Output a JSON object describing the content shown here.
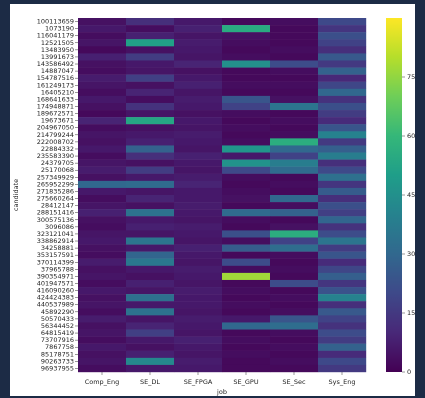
{
  "chart_data": {
    "type": "heatmap",
    "x_label": "job",
    "y_label": "candidate",
    "columns": [
      "Comp_Eng",
      "SE_DL",
      "SE_FPGA",
      "SE_GPU",
      "SE_Sec",
      "Sys_Eng"
    ],
    "rows": [
      "100113659",
      "1073190",
      "116041179",
      "12521505",
      "13483950",
      "13991673",
      "143586492",
      "14887047",
      "154787516",
      "161249173",
      "16405210",
      "168641633",
      "174948871",
      "189672571",
      "19673671",
      "204967050",
      "214799244",
      "222008702",
      "22884332",
      "235583390",
      "24379705",
      "25170068",
      "257349929",
      "265952299",
      "271835286",
      "275660264",
      "28412147",
      "288151416",
      "300575136",
      "3096086",
      "323121041",
      "338862914",
      "34258881",
      "353157591",
      "370114399",
      "37965788",
      "390354971",
      "401947571",
      "416090260",
      "424424383",
      "440537989",
      "45892290",
      "50570433",
      "56344452",
      "64815419",
      "73707916",
      "7867758",
      "85178751",
      "90263733",
      "96937955"
    ],
    "values": [
      [
        4,
        12,
        6,
        2,
        3,
        20
      ],
      [
        6,
        3,
        8,
        55,
        2,
        14
      ],
      [
        3,
        8,
        5,
        4,
        2,
        22
      ],
      [
        5,
        51,
        7,
        3,
        2,
        18
      ],
      [
        2,
        4,
        6,
        2,
        3,
        12
      ],
      [
        8,
        16,
        5,
        3,
        2,
        25
      ],
      [
        4,
        6,
        9,
        45,
        21,
        15
      ],
      [
        3,
        5,
        4,
        2,
        3,
        28
      ],
      [
        7,
        17,
        6,
        2,
        2,
        10
      ],
      [
        5,
        4,
        8,
        3,
        3,
        19
      ],
      [
        3,
        9,
        5,
        2,
        2,
        30
      ],
      [
        6,
        3,
        7,
        24,
        4,
        13
      ],
      [
        4,
        13,
        6,
        18,
        35,
        22
      ],
      [
        2,
        5,
        4,
        3,
        2,
        16
      ],
      [
        9,
        53,
        6,
        2,
        3,
        11
      ],
      [
        3,
        4,
        5,
        3,
        2,
        24
      ],
      [
        5,
        6,
        7,
        2,
        3,
        40
      ],
      [
        4,
        8,
        6,
        3,
        56,
        15
      ],
      [
        6,
        28,
        5,
        47,
        30,
        27
      ],
      [
        3,
        12,
        8,
        6,
        18,
        38
      ],
      [
        5,
        4,
        6,
        46,
        38,
        12
      ],
      [
        7,
        16,
        5,
        20,
        31,
        20
      ],
      [
        4,
        6,
        7,
        3,
        2,
        33
      ],
      [
        30,
        31,
        9,
        2,
        3,
        14
      ],
      [
        6,
        5,
        6,
        3,
        2,
        26
      ],
      [
        3,
        9,
        6,
        4,
        30,
        12
      ],
      [
        5,
        4,
        7,
        2,
        3,
        22
      ],
      [
        8,
        34,
        6,
        31,
        28,
        17
      ],
      [
        4,
        6,
        5,
        3,
        2,
        29
      ],
      [
        3,
        8,
        7,
        2,
        4,
        13
      ],
      [
        5,
        5,
        6,
        22,
        56,
        21
      ],
      [
        6,
        35,
        5,
        3,
        18,
        35
      ],
      [
        4,
        6,
        8,
        26,
        32,
        16
      ],
      [
        3,
        29,
        6,
        2,
        3,
        24
      ],
      [
        7,
        36,
        5,
        21,
        2,
        11
      ],
      [
        4,
        6,
        7,
        3,
        3,
        19
      ],
      [
        5,
        4,
        6,
        77,
        2,
        27
      ],
      [
        3,
        8,
        5,
        2,
        21,
        14
      ],
      [
        6,
        5,
        7,
        3,
        2,
        23
      ],
      [
        4,
        33,
        6,
        2,
        3,
        40
      ],
      [
        5,
        6,
        6,
        3,
        2,
        12
      ],
      [
        3,
        34,
        5,
        2,
        3,
        25
      ],
      [
        7,
        5,
        7,
        6,
        24,
        18
      ],
      [
        4,
        9,
        6,
        30,
        32,
        13
      ],
      [
        5,
        17,
        5,
        2,
        3,
        21
      ],
      [
        3,
        6,
        8,
        3,
        2,
        16
      ],
      [
        6,
        4,
        6,
        2,
        3,
        28
      ],
      [
        4,
        8,
        5,
        3,
        2,
        11
      ],
      [
        5,
        42,
        7,
        2,
        3,
        20
      ],
      [
        3,
        6,
        6,
        2,
        2,
        15
      ]
    ],
    "colormap": "viridis",
    "clim": [
      0,
      90
    ],
    "cticks": [
      0,
      15,
      30,
      45,
      60,
      75
    ]
  }
}
